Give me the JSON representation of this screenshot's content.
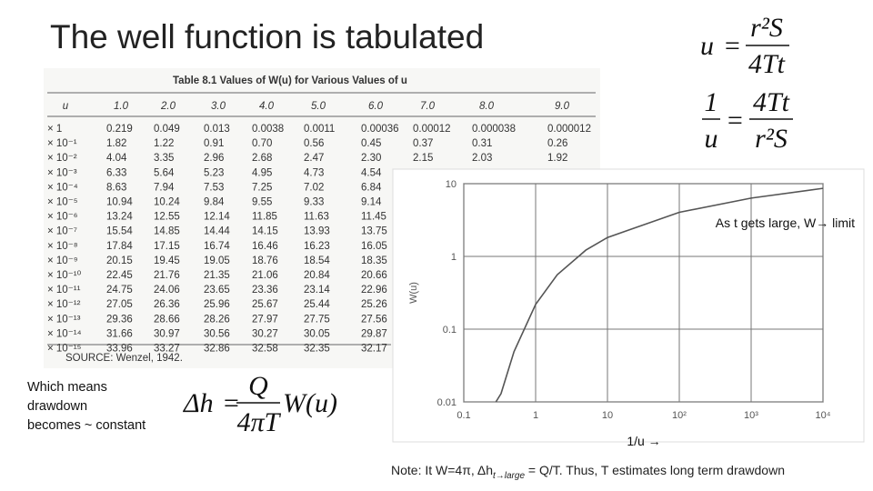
{
  "title": "The well function is tabulated",
  "equations": [
    {
      "lhs": "u",
      "relation": "=",
      "numerator": "r²S",
      "denominator": "4Tt"
    },
    {
      "lhs_numerator": "1",
      "lhs_denominator": "u",
      "relation": "=",
      "numerator": "4Tt",
      "denominator": "r²S"
    },
    {
      "lhs": "Δh",
      "relation": "=",
      "numerator": "Q",
      "denominator": "4πT",
      "factor": "W(u)"
    }
  ],
  "table": {
    "title": "Table 8.1  Values of W(u) for Various Values of u",
    "header": [
      "u",
      "1.0",
      "2.0",
      "3.0",
      "4.0",
      "5.0",
      "6.0",
      "7.0",
      "8.0",
      "9.0"
    ],
    "rows": [
      [
        "× 1",
        "0.219",
        "0.049",
        "0.013",
        "0.0038",
        "0.0011",
        "0.00036",
        "0.00012",
        "0.000038",
        "0.000012"
      ],
      [
        "× 10⁻¹",
        "1.82",
        "1.22",
        "0.91",
        "0.70",
        "0.56",
        "0.45",
        "0.37",
        "0.31",
        "0.26"
      ],
      [
        "× 10⁻²",
        "4.04",
        "3.35",
        "2.96",
        "2.68",
        "2.47",
        "2.30",
        "2.15",
        "2.03",
        "1.92"
      ],
      [
        "× 10⁻³",
        "6.33",
        "5.64",
        "5.23",
        "4.95",
        "4.73",
        "4.54"
      ],
      [
        "× 10⁻⁴",
        "8.63",
        "7.94",
        "7.53",
        "7.25",
        "7.02",
        "6.84"
      ],
      [
        "× 10⁻⁵",
        "10.94",
        "10.24",
        "9.84",
        "9.55",
        "9.33",
        "9.14"
      ],
      [
        "× 10⁻⁶",
        "13.24",
        "12.55",
        "12.14",
        "11.85",
        "11.63",
        "11.45"
      ],
      [
        "× 10⁻⁷",
        "15.54",
        "14.85",
        "14.44",
        "14.15",
        "13.93",
        "13.75"
      ],
      [
        "× 10⁻⁸",
        "17.84",
        "17.15",
        "16.74",
        "16.46",
        "16.23",
        "16.05"
      ],
      [
        "× 10⁻⁹",
        "20.15",
        "19.45",
        "19.05",
        "18.76",
        "18.54",
        "18.35"
      ],
      [
        "× 10⁻¹⁰",
        "22.45",
        "21.76",
        "21.35",
        "21.06",
        "20.84",
        "20.66"
      ],
      [
        "× 10⁻¹¹",
        "24.75",
        "24.06",
        "23.65",
        "23.36",
        "23.14",
        "22.96"
      ],
      [
        "× 10⁻¹²",
        "27.05",
        "26.36",
        "25.96",
        "25.67",
        "25.44",
        "25.26"
      ],
      [
        "× 10⁻¹³",
        "29.36",
        "28.66",
        "28.26",
        "27.97",
        "27.75",
        "27.56"
      ],
      [
        "× 10⁻¹⁴",
        "31.66",
        "30.97",
        "30.56",
        "30.27",
        "30.05",
        "29.87"
      ],
      [
        "× 10⁻¹⁵",
        "33.96",
        "33.27",
        "32.86",
        "32.58",
        "32.35",
        "32.17"
      ]
    ],
    "source": "SOURCE: Wenzel, 1942."
  },
  "left_text": [
    "Which means",
    "drawdown",
    "becomes ~ constant"
  ],
  "note": {
    "prefix": "Note:  It W=4π, Δh",
    "subscript": "t→large",
    "suffix": " = Q/T.  Thus, T estimates long term drawdown"
  },
  "chart_data": {
    "type": "line",
    "ylabel": "W(u)",
    "xlabel": "1/u →",
    "annotation": "As t gets large, W→ limit",
    "x": [
      0.28,
      0.33,
      0.5,
      1,
      2,
      5,
      10,
      100,
      1000,
      10000
    ],
    "values": [
      0.01,
      0.013,
      0.049,
      0.219,
      0.56,
      1.22,
      1.82,
      4.04,
      6.33,
      8.63
    ],
    "color": "#555555",
    "xscale": "log",
    "yscale": "log",
    "xlim": [
      0.1,
      10000
    ],
    "ylim": [
      0.01,
      10
    ],
    "xticks": [
      0.1,
      1,
      10,
      {
        "value": 100,
        "label": "10²"
      },
      {
        "value": 1000,
        "label": "10³"
      },
      {
        "value": 10000,
        "label": "10⁴"
      }
    ],
    "yticks": [
      0.01,
      0.1,
      1,
      10
    ],
    "grid": true
  }
}
